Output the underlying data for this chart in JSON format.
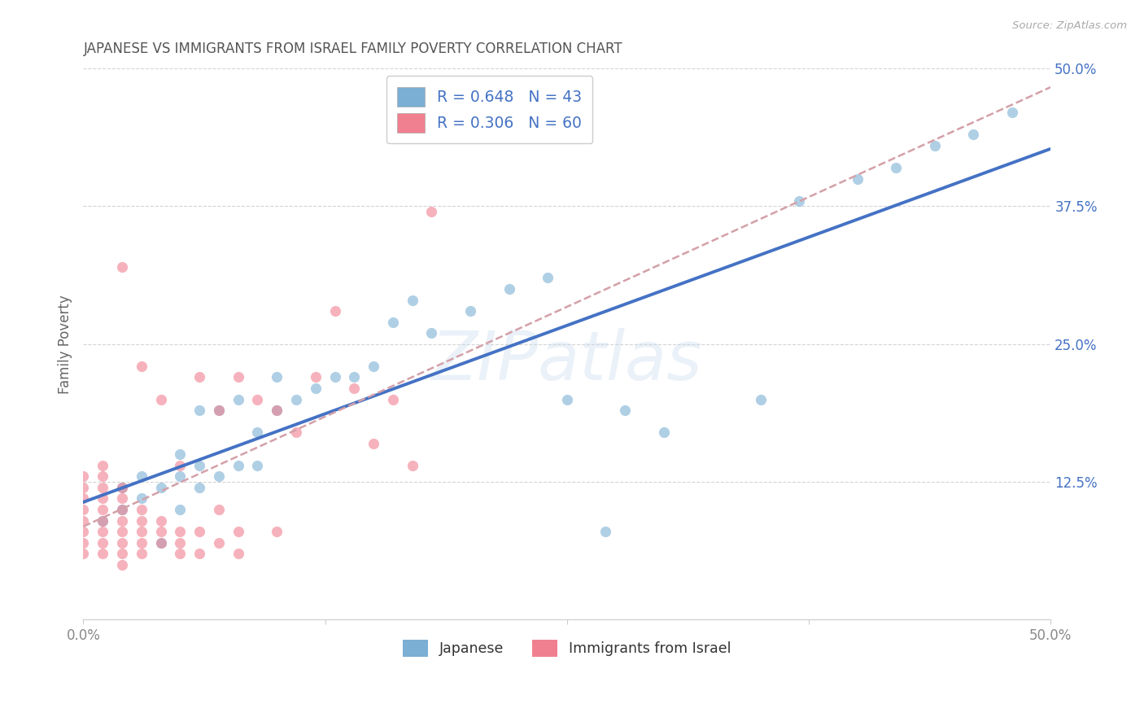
{
  "title": "JAPANESE VS IMMIGRANTS FROM ISRAEL FAMILY POVERTY CORRELATION CHART",
  "source": "Source: ZipAtlas.com",
  "ylabel": "Family Poverty",
  "xlabel": "",
  "xlim": [
    0,
    0.5
  ],
  "ylim": [
    0,
    0.5
  ],
  "watermark": "ZIPatlas",
  "legend_entries": [
    {
      "label": "R = 0.648   N = 43",
      "color": "#aec6e8"
    },
    {
      "label": "R = 0.306   N = 60",
      "color": "#f4b8c1"
    }
  ],
  "legend_labels_bottom": [
    "Japanese",
    "Immigrants from Israel"
  ],
  "japanese_color": "#7bafd4",
  "israel_color": "#f08090",
  "japanese_line_color": "#4472c4",
  "israel_line_color": "#d4a0a8",
  "japanese_scatter": [
    [
      0.01,
      0.09
    ],
    [
      0.02,
      0.1
    ],
    [
      0.02,
      0.12
    ],
    [
      0.03,
      0.11
    ],
    [
      0.03,
      0.13
    ],
    [
      0.04,
      0.07
    ],
    [
      0.04,
      0.12
    ],
    [
      0.05,
      0.1
    ],
    [
      0.05,
      0.13
    ],
    [
      0.05,
      0.15
    ],
    [
      0.06,
      0.12
    ],
    [
      0.06,
      0.14
    ],
    [
      0.06,
      0.19
    ],
    [
      0.07,
      0.13
    ],
    [
      0.07,
      0.19
    ],
    [
      0.08,
      0.14
    ],
    [
      0.08,
      0.2
    ],
    [
      0.09,
      0.14
    ],
    [
      0.09,
      0.17
    ],
    [
      0.1,
      0.19
    ],
    [
      0.1,
      0.22
    ],
    [
      0.11,
      0.2
    ],
    [
      0.12,
      0.21
    ],
    [
      0.13,
      0.22
    ],
    [
      0.14,
      0.22
    ],
    [
      0.15,
      0.23
    ],
    [
      0.16,
      0.27
    ],
    [
      0.17,
      0.29
    ],
    [
      0.18,
      0.26
    ],
    [
      0.2,
      0.28
    ],
    [
      0.22,
      0.3
    ],
    [
      0.24,
      0.31
    ],
    [
      0.25,
      0.2
    ],
    [
      0.27,
      0.08
    ],
    [
      0.28,
      0.19
    ],
    [
      0.3,
      0.17
    ],
    [
      0.35,
      0.2
    ],
    [
      0.37,
      0.38
    ],
    [
      0.4,
      0.4
    ],
    [
      0.42,
      0.41
    ],
    [
      0.44,
      0.43
    ],
    [
      0.46,
      0.44
    ],
    [
      0.48,
      0.46
    ]
  ],
  "israel_scatter": [
    [
      0.0,
      0.06
    ],
    [
      0.0,
      0.07
    ],
    [
      0.0,
      0.08
    ],
    [
      0.0,
      0.09
    ],
    [
      0.0,
      0.1
    ],
    [
      0.0,
      0.11
    ],
    [
      0.0,
      0.12
    ],
    [
      0.0,
      0.13
    ],
    [
      0.01,
      0.06
    ],
    [
      0.01,
      0.07
    ],
    [
      0.01,
      0.08
    ],
    [
      0.01,
      0.09
    ],
    [
      0.01,
      0.1
    ],
    [
      0.01,
      0.11
    ],
    [
      0.01,
      0.12
    ],
    [
      0.01,
      0.13
    ],
    [
      0.01,
      0.14
    ],
    [
      0.02,
      0.05
    ],
    [
      0.02,
      0.06
    ],
    [
      0.02,
      0.07
    ],
    [
      0.02,
      0.08
    ],
    [
      0.02,
      0.09
    ],
    [
      0.02,
      0.1
    ],
    [
      0.02,
      0.11
    ],
    [
      0.02,
      0.12
    ],
    [
      0.02,
      0.32
    ],
    [
      0.03,
      0.06
    ],
    [
      0.03,
      0.07
    ],
    [
      0.03,
      0.08
    ],
    [
      0.03,
      0.09
    ],
    [
      0.03,
      0.1
    ],
    [
      0.03,
      0.23
    ],
    [
      0.04,
      0.07
    ],
    [
      0.04,
      0.08
    ],
    [
      0.04,
      0.09
    ],
    [
      0.04,
      0.2
    ],
    [
      0.05,
      0.06
    ],
    [
      0.05,
      0.07
    ],
    [
      0.05,
      0.08
    ],
    [
      0.05,
      0.14
    ],
    [
      0.06,
      0.06
    ],
    [
      0.06,
      0.08
    ],
    [
      0.06,
      0.22
    ],
    [
      0.07,
      0.07
    ],
    [
      0.07,
      0.1
    ],
    [
      0.07,
      0.19
    ],
    [
      0.08,
      0.06
    ],
    [
      0.08,
      0.08
    ],
    [
      0.08,
      0.22
    ],
    [
      0.09,
      0.2
    ],
    [
      0.1,
      0.08
    ],
    [
      0.1,
      0.19
    ],
    [
      0.11,
      0.17
    ],
    [
      0.12,
      0.22
    ],
    [
      0.13,
      0.28
    ],
    [
      0.14,
      0.21
    ],
    [
      0.15,
      0.16
    ],
    [
      0.16,
      0.2
    ],
    [
      0.17,
      0.14
    ],
    [
      0.18,
      0.37
    ]
  ],
  "background_color": "#ffffff",
  "grid_color": "#d0d0d0",
  "title_color": "#333333",
  "axis_label_color": "#666666",
  "tick_label_color_right": "#4472c4",
  "tick_label_color_bottom": "#888888"
}
